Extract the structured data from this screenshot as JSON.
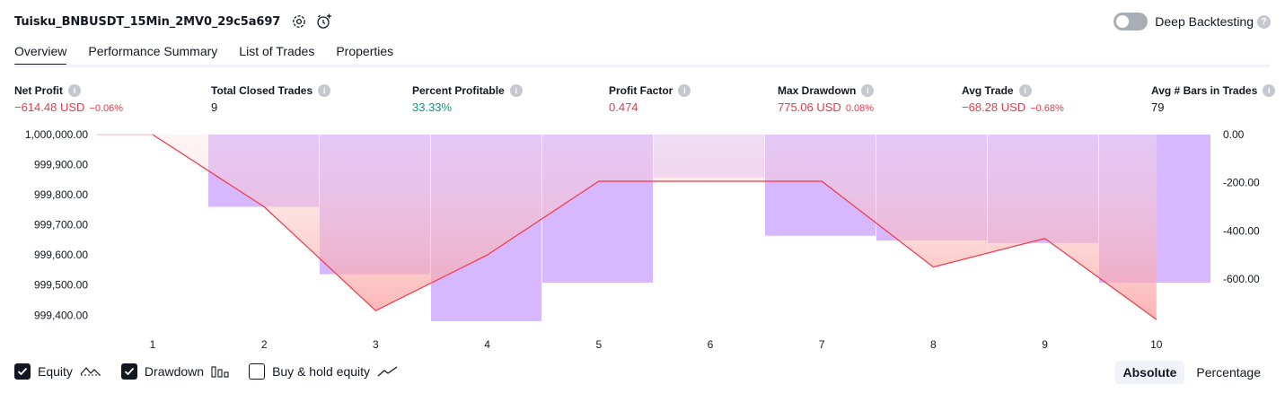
{
  "header": {
    "title": "Tuisku_BNBUSDT_15Min_2MV0_29c5a697",
    "deep_backtesting_label": "Deep Backtesting",
    "deep_backtesting_on": false
  },
  "tabs": [
    {
      "label": "Overview",
      "active": true
    },
    {
      "label": "Performance Summary",
      "active": false
    },
    {
      "label": "List of Trades",
      "active": false
    },
    {
      "label": "Properties",
      "active": false
    }
  ],
  "metrics": {
    "net_profit": {
      "label": "Net Profit",
      "value": "−614.48 USD",
      "pct": "−0.06%"
    },
    "total_closed_trades": {
      "label": "Total Closed Trades",
      "value": "9"
    },
    "percent_profitable": {
      "label": "Percent Profitable",
      "value": "33.33%"
    },
    "profit_factor": {
      "label": "Profit Factor",
      "value": "0.474"
    },
    "max_drawdown": {
      "label": "Max Drawdown",
      "value": "775.06 USD",
      "pct": "0.08%"
    },
    "avg_trade": {
      "label": "Avg Trade",
      "value": "−68.28 USD",
      "pct": "−0.68%"
    },
    "avg_bars": {
      "label": "Avg # Bars in Trades",
      "value": "79"
    }
  },
  "chart_data": {
    "type": "line",
    "x": [
      1,
      2,
      3,
      4,
      5,
      6,
      7,
      8,
      9,
      10
    ],
    "left_axis_ticks": [
      "1,000,000.00",
      "999,900.00",
      "999,800.00",
      "999,700.00",
      "999,600.00",
      "999,500.00",
      "999,400.00"
    ],
    "right_axis_ticks": [
      "0.00",
      "-200.00",
      "-400.00",
      "-600.00"
    ],
    "left_ylim": [
      999380,
      1000000
    ],
    "right_ylim": [
      -775.06,
      0
    ],
    "series": [
      {
        "name": "Equity",
        "axis": "left",
        "color": "#f23645",
        "values": [
          1000000.0,
          999760.0,
          999415.0,
          999600.0,
          999845.0,
          999845.0,
          999845.0,
          999560.0,
          999655.0,
          999385.52
        ]
      },
      {
        "name": "Drawdown",
        "axis": "right",
        "color": "#d7b8ff",
        "values": [
          0,
          -300,
          -580,
          -775.06,
          -615,
          0,
          -420,
          -440,
          -450,
          -615
        ]
      }
    ]
  },
  "legend": {
    "equity": {
      "label": "Equity",
      "checked": true
    },
    "drawdown": {
      "label": "Drawdown",
      "checked": true
    },
    "buy_hold": {
      "label": "Buy & hold equity",
      "checked": false
    }
  },
  "modes": [
    {
      "label": "Absolute",
      "active": true
    },
    {
      "label": "Percentage",
      "active": false
    }
  ]
}
